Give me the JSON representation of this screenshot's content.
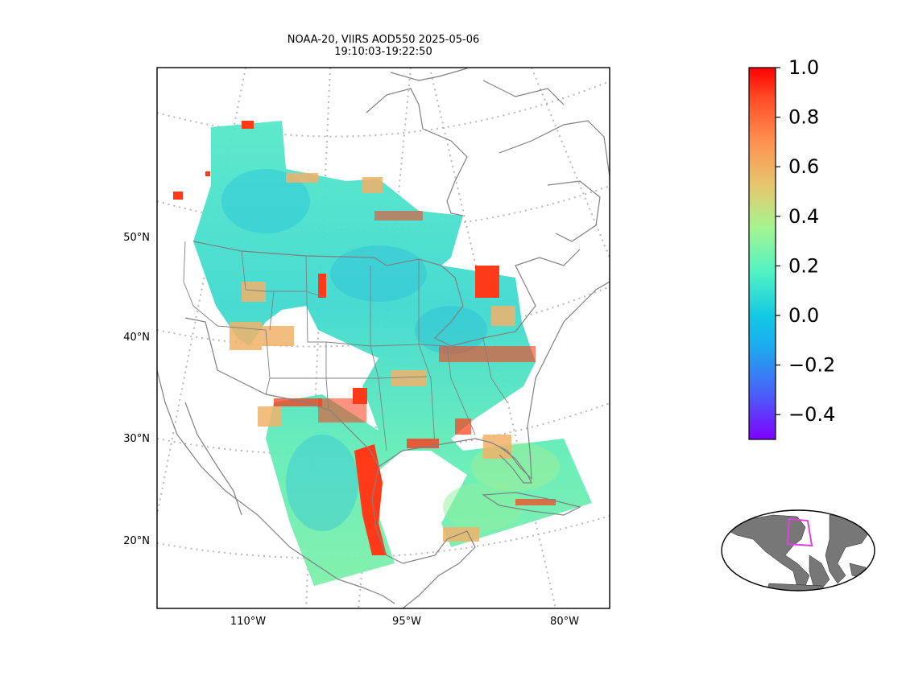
{
  "title": {
    "line1": "NOAA-20, VIIRS AOD550 2025-05-06",
    "line2": "19:10:03-19:22:50"
  },
  "map": {
    "projection": "lambert-conformal",
    "lat_labels": [
      "50°N",
      "40°N",
      "30°N",
      "20°N"
    ],
    "lon_labels": [
      "110°W",
      "95°W",
      "80°W"
    ],
    "coastline_color": "#808080",
    "graticule_color": "#b8b8b8",
    "inset_box_color": "#e040e0",
    "land_inset_color": "#777777"
  },
  "colorbar": {
    "colormap": "rainbow",
    "min": -0.5,
    "max": 1.0,
    "tick_labels": [
      "1.0",
      "0.8",
      "0.6",
      "0.4",
      "0.2",
      "0.0",
      "−0.2",
      "−0.4"
    ],
    "tick_values": [
      1.0,
      0.8,
      0.6,
      0.4,
      0.2,
      0.0,
      -0.2,
      -0.4
    ]
  },
  "inset": {
    "type": "world-overview",
    "highlight": "swath extent"
  }
}
